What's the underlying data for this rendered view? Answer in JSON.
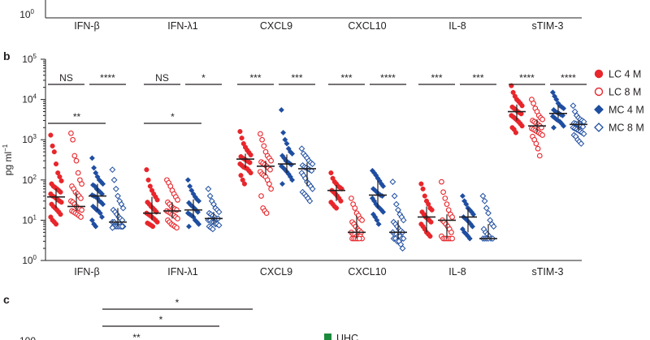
{
  "panel_labels": {
    "b": "b",
    "c": "c"
  },
  "top_strip": {
    "tick_label_base": "10",
    "tick_label_exp": "0",
    "categories": [
      "IFN-β",
      "IFN-λ1",
      "CXCL9",
      "CXCL10",
      "IL-8",
      "sTIM-3"
    ]
  },
  "colors": {
    "LC": "#e8262b",
    "MC": "#1f4ea1",
    "UHC": "#1a8a3c",
    "text": "#231f20"
  },
  "chart_data": {
    "type": "scatter",
    "ylabel_base": "pg ml",
    "ylabel_exp": "−1",
    "yscale": "log",
    "ylim": [
      1,
      100000
    ],
    "ytick_exponents": [
      "0",
      "1",
      "2",
      "3",
      "4",
      "5"
    ],
    "categories": [
      "IFN-β",
      "IFN-λ1",
      "CXCL9",
      "CXCL10",
      "IL-8",
      "sTIM-3"
    ],
    "legend": {
      "placement": "right",
      "entries": [
        {
          "label": "LC 4 M",
          "marker": "filled-circle",
          "color": "#e8262b"
        },
        {
          "label": "LC 8 M",
          "marker": "open-circle",
          "color": "#e8262b"
        },
        {
          "label": "MC 4 M",
          "marker": "filled-diamond",
          "color": "#1f4ea1"
        },
        {
          "label": "MC 8 M",
          "marker": "open-diamond",
          "color": "#1f4ea1"
        }
      ]
    },
    "groups": [
      {
        "category": "IFN-β",
        "series": [
          {
            "name": "LC 4 M",
            "median": 38,
            "q1": 20,
            "q3": 62,
            "values": [
              1300,
              700,
              500,
              250,
              150,
              120,
              95,
              80,
              70,
              65,
              60,
              55,
              50,
              45,
              40,
              38,
              35,
              32,
              30,
              28,
              25,
              22,
              20,
              18,
              16,
              14,
              12,
              10,
              9,
              8
            ]
          },
          {
            "name": "LC 8 M",
            "median": 22,
            "q1": 17,
            "q3": 48,
            "values": [
              1450,
              1000,
              400,
              300,
              150,
              100,
              80,
              70,
              60,
              50,
              45,
              40,
              35,
              30,
              28,
              25,
              22,
              20,
              19,
              18,
              17,
              16,
              15,
              14,
              13,
              12
            ]
          },
          {
            "name": "MC 4 M",
            "median": 40,
            "q1": 17,
            "q3": 80,
            "values": [
              350,
              200,
              150,
              120,
              100,
              90,
              80,
              75,
              70,
              60,
              55,
              50,
              45,
              42,
              40,
              38,
              35,
              30,
              28,
              25,
              22,
              20,
              18,
              17,
              15,
              12,
              10,
              8,
              7
            ]
          },
          {
            "name": "MC 8 M",
            "median": 9,
            "q1": 7,
            "q3": 20,
            "values": [
              180,
              100,
              60,
              40,
              30,
              25,
              20,
              18,
              16,
              14,
              12,
              11,
              10,
              9,
              9,
              8,
              8,
              8,
              7,
              7,
              7,
              7,
              7,
              7,
              7,
              7,
              6.5
            ]
          }
        ]
      },
      {
        "category": "IFN-λ1",
        "series": [
          {
            "name": "LC 4 M",
            "median": 15,
            "q1": 10,
            "q3": 38,
            "values": [
              180,
              100,
              70,
              55,
              45,
              38,
              32,
              28,
              25,
              22,
              20,
              18,
              16,
              15,
              14,
              13,
              12,
              11,
              10,
              9,
              8.5,
              8,
              7.5,
              7
            ]
          },
          {
            "name": "LC 8 M",
            "median": 17,
            "q1": 11,
            "q3": 28,
            "values": [
              100,
              85,
              70,
              55,
              45,
              38,
              32,
              28,
              25,
              22,
              20,
              19,
              18,
              17,
              16,
              15,
              14,
              13,
              12,
              11,
              10,
              9,
              8,
              7.5,
              7,
              6.5
            ]
          },
          {
            "name": "MC 4 M",
            "median": 18,
            "q1": 12,
            "q3": 33,
            "values": [
              100,
              70,
              55,
              45,
              38,
              33,
              30,
              27,
              24,
              22,
              20,
              18,
              16,
              15,
              14,
              13,
              12,
              10,
              9,
              8,
              7
            ]
          },
          {
            "name": "MC 8 M",
            "median": 11,
            "q1": 8,
            "q3": 16,
            "values": [
              60,
              40,
              30,
              25,
              20,
              18,
              16,
              15,
              14,
              13,
              12,
              11,
              11,
              10,
              10,
              9,
              9,
              8,
              8,
              7.5,
              7,
              6.5,
              6
            ]
          }
        ]
      },
      {
        "category": "CXCL9",
        "series": [
          {
            "name": "LC 4 M",
            "median": 330,
            "q1": 200,
            "q3": 450,
            "values": [
              1600,
              1100,
              800,
              650,
              550,
              480,
              420,
              380,
              350,
              330,
              310,
              290,
              270,
              250,
              230,
              210,
              200,
              190,
              170,
              150,
              130,
              100,
              80
            ]
          },
          {
            "name": "LC 8 M",
            "median": 220,
            "q1": 130,
            "q3": 300,
            "values": [
              1400,
              1000,
              700,
              500,
              400,
              350,
              300,
              280,
              260,
              240,
              220,
              200,
              180,
              160,
              140,
              130,
              120,
              100,
              80,
              60,
              40,
              20,
              17,
              15
            ]
          },
          {
            "name": "MC 4 M",
            "median": 250,
            "q1": 150,
            "q3": 430,
            "values": [
              5500,
              1500,
              1000,
              800,
              600,
              500,
              450,
              400,
              350,
              300,
              280,
              260,
              240,
              220,
              200,
              180,
              160,
              140,
              120,
              100,
              80
            ]
          },
          {
            "name": "MC 8 M",
            "median": 190,
            "q1": 70,
            "q3": 270,
            "values": [
              600,
              450,
              400,
              350,
              300,
              270,
              250,
              230,
              210,
              200,
              190,
              180,
              170,
              150,
              130,
              110,
              90,
              80,
              70,
              60,
              50,
              45,
              40,
              35,
              30
            ]
          }
        ]
      },
      {
        "category": "CXCL10",
        "series": [
          {
            "name": "LC 4 M",
            "median": 55,
            "q1": 30,
            "q3": 75,
            "values": [
              150,
              110,
              90,
              80,
              70,
              65,
              60,
              55,
              50,
              45,
              40,
              35,
              30,
              28,
              25,
              22,
              20
            ]
          },
          {
            "name": "LC 8 M",
            "median": 5,
            "q1": 3.5,
            "q3": 13,
            "values": [
              35,
              25,
              20,
              15,
              13,
              11,
              10,
              9,
              8,
              7,
              6,
              5.5,
              5,
              5,
              4.5,
              4.5,
              4,
              4,
              4,
              3.5,
              3.5,
              3.5,
              3.5,
              3.5,
              3.5
            ]
          },
          {
            "name": "MC 4 M",
            "median": 42,
            "q1": 20,
            "q3": 95,
            "values": [
              170,
              150,
              130,
              110,
              95,
              80,
              70,
              60,
              55,
              50,
              45,
              42,
              40,
              35,
              30,
              25,
              22,
              20,
              18,
              16,
              14,
              12,
              10,
              8
            ]
          },
          {
            "name": "MC 8 M",
            "median": 5,
            "q1": 3.5,
            "q3": 10,
            "values": [
              90,
              40,
              25,
              18,
              14,
              12,
              10,
              9,
              8,
              7,
              6,
              5.5,
              5,
              5,
              4.5,
              4.5,
              4,
              4,
              3.5,
              3.5,
              3.5,
              3.5,
              3,
              3,
              2.5,
              2
            ]
          }
        ]
      },
      {
        "category": "IL-8",
        "series": [
          {
            "name": "LC 4 M",
            "median": 12,
            "q1": 5,
            "q3": 22,
            "values": [
              80,
              60,
              40,
              30,
              25,
              20,
              18,
              16,
              14,
              12,
              11,
              10,
              9,
              8,
              7,
              6,
              5,
              4.5,
              4
            ]
          },
          {
            "name": "LC 8 M",
            "median": 10,
            "q1": 3.5,
            "q3": 14,
            "values": [
              90,
              50,
              35,
              25,
              18,
              14,
              12,
              10,
              9,
              8,
              7,
              6,
              5,
              4,
              3.5,
              3.5,
              3.5,
              3.5,
              3.5,
              3.5
            ]
          },
          {
            "name": "MC 4 M",
            "median": 12,
            "q1": 5,
            "q3": 20,
            "values": [
              40,
              30,
              25,
              20,
              18,
              16,
              14,
              12,
              11,
              10,
              9,
              8,
              7,
              6,
              5,
              4.5,
              4,
              3.5
            ]
          },
          {
            "name": "MC 8 M",
            "median": 3.5,
            "q1": 3.5,
            "q3": 8,
            "values": [
              40,
              30,
              20,
              15,
              10,
              8,
              7,
              6,
              5,
              4.5,
              4,
              3.5,
              3.5,
              3.5,
              3.5,
              3.5,
              3.5
            ]
          }
        ]
      },
      {
        "category": "sTIM-3",
        "series": [
          {
            "name": "LC 4 M",
            "median": 5000,
            "q1": 3000,
            "q3": 7500,
            "values": [
              22000,
              15000,
              12000,
              10000,
              9000,
              8000,
              7000,
              6500,
              6000,
              5500,
              5000,
              4700,
              4400,
              4000,
              3700,
              3400,
              3100,
              2800,
              2500,
              2200,
              2000,
              1800,
              1500
            ]
          },
          {
            "name": "LC 8 M",
            "median": 2200,
            "q1": 1500,
            "q3": 3200,
            "values": [
              10000,
              8000,
              6000,
              5000,
              4000,
              3500,
              3200,
              3000,
              2800,
              2600,
              2400,
              2200,
              2000,
              1900,
              1800,
              1700,
              1600,
              1500,
              1400,
              1300,
              1200,
              1000,
              800,
              600,
              400
            ]
          },
          {
            "name": "MC 4 M",
            "median": 4500,
            "q1": 3500,
            "q3": 7000,
            "values": [
              15000,
              12000,
              10000,
              8000,
              7000,
              6500,
              6000,
              5500,
              5000,
              4700,
              4500,
              4200,
              4000,
              3800,
              3500,
              3200,
              3000,
              2800,
              2500,
              2200,
              2000
            ]
          },
          {
            "name": "MC 8 M",
            "median": 2400,
            "q1": 1700,
            "q3": 3000,
            "values": [
              7000,
              5000,
              4000,
              3500,
              3200,
              3000,
              2800,
              2600,
              2500,
              2400,
              2300,
              2200,
              2100,
              2000,
              1900,
              1800,
              1700,
              1600,
              1500,
              1400,
              1300,
              1200,
              1000,
              900,
              800
            ]
          }
        ]
      }
    ],
    "significance": [
      {
        "label": "NS",
        "group": 0,
        "from": 0,
        "to": 1,
        "level": "upper"
      },
      {
        "label": "****",
        "group": 0,
        "from": 2,
        "to": 3,
        "level": "upper"
      },
      {
        "label": "**",
        "group": 0,
        "from": 0,
        "to": 2,
        "level": "lower"
      },
      {
        "label": "NS",
        "group": 1,
        "from": 0,
        "to": 1,
        "level": "upper"
      },
      {
        "label": "*",
        "group": 1,
        "from": 2,
        "to": 3,
        "level": "upper"
      },
      {
        "label": "*",
        "group": 1,
        "from": 0,
        "to": 2,
        "level": "lower"
      },
      {
        "label": "***",
        "group": 2,
        "from": 0,
        "to": 1,
        "level": "upper"
      },
      {
        "label": "***",
        "group": 2,
        "from": 2,
        "to": 3,
        "level": "upper"
      },
      {
        "label": "***",
        "group": 3,
        "from": 0,
        "to": 1,
        "level": "upper"
      },
      {
        "label": "****",
        "group": 3,
        "from": 2,
        "to": 3,
        "level": "upper"
      },
      {
        "label": "***",
        "group": 4,
        "from": 0,
        "to": 1,
        "level": "upper"
      },
      {
        "label": "***",
        "group": 4,
        "from": 2,
        "to": 3,
        "level": "upper"
      },
      {
        "label": "****",
        "group": 5,
        "from": 0,
        "to": 1,
        "level": "upper"
      },
      {
        "label": "****",
        "group": 5,
        "from": 2,
        "to": 3,
        "level": "upper"
      }
    ]
  },
  "panel_c": {
    "sig_labels": [
      "*",
      "*",
      "**"
    ],
    "y_tick_top": "100",
    "legend_label": "UHC"
  }
}
